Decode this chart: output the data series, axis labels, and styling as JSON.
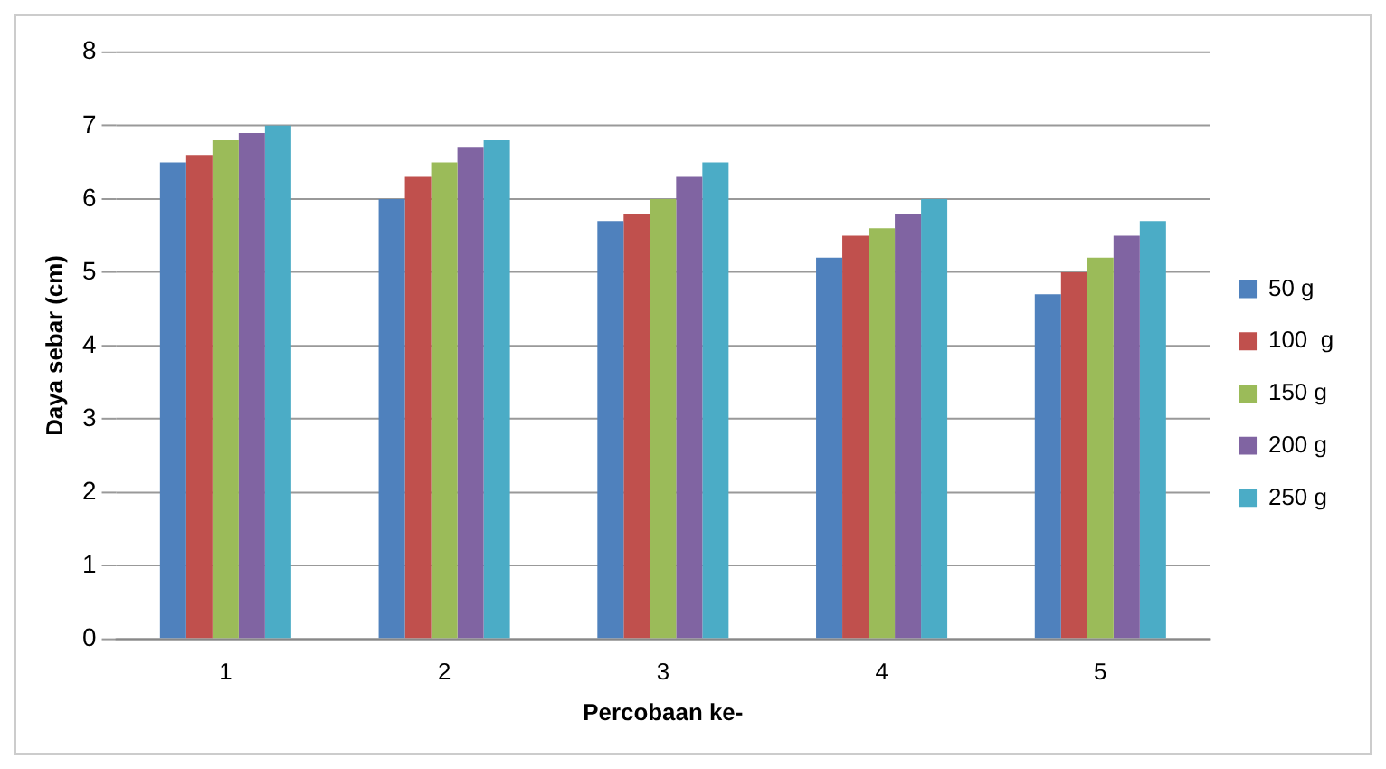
{
  "chart_data": {
    "type": "bar",
    "xlabel": "Percobaan ke-",
    "ylabel": "Daya sebar (cm)",
    "categories": [
      "1",
      "2",
      "3",
      "4",
      "5"
    ],
    "series": [
      {
        "name": "50 g",
        "color": "#4f81bd",
        "values": [
          6.5,
          6.0,
          5.7,
          5.2,
          4.7
        ]
      },
      {
        "name": "100  g",
        "color": "#c0504d",
        "values": [
          6.6,
          6.3,
          5.8,
          5.5,
          5.0
        ]
      },
      {
        "name": "150 g",
        "color": "#9bbb59",
        "values": [
          6.8,
          6.5,
          6.0,
          5.6,
          5.2
        ]
      },
      {
        "name": "200 g",
        "color": "#8064a2",
        "values": [
          6.9,
          6.7,
          6.3,
          5.8,
          5.5
        ]
      },
      {
        "name": "250 g",
        "color": "#4bacc6",
        "values": [
          7.0,
          6.8,
          6.5,
          6.0,
          5.7
        ]
      }
    ],
    "ylim": [
      0,
      8
    ],
    "yticks": [
      0,
      1,
      2,
      3,
      4,
      5,
      6,
      7,
      8
    ],
    "grid": "y",
    "legend": "right"
  }
}
